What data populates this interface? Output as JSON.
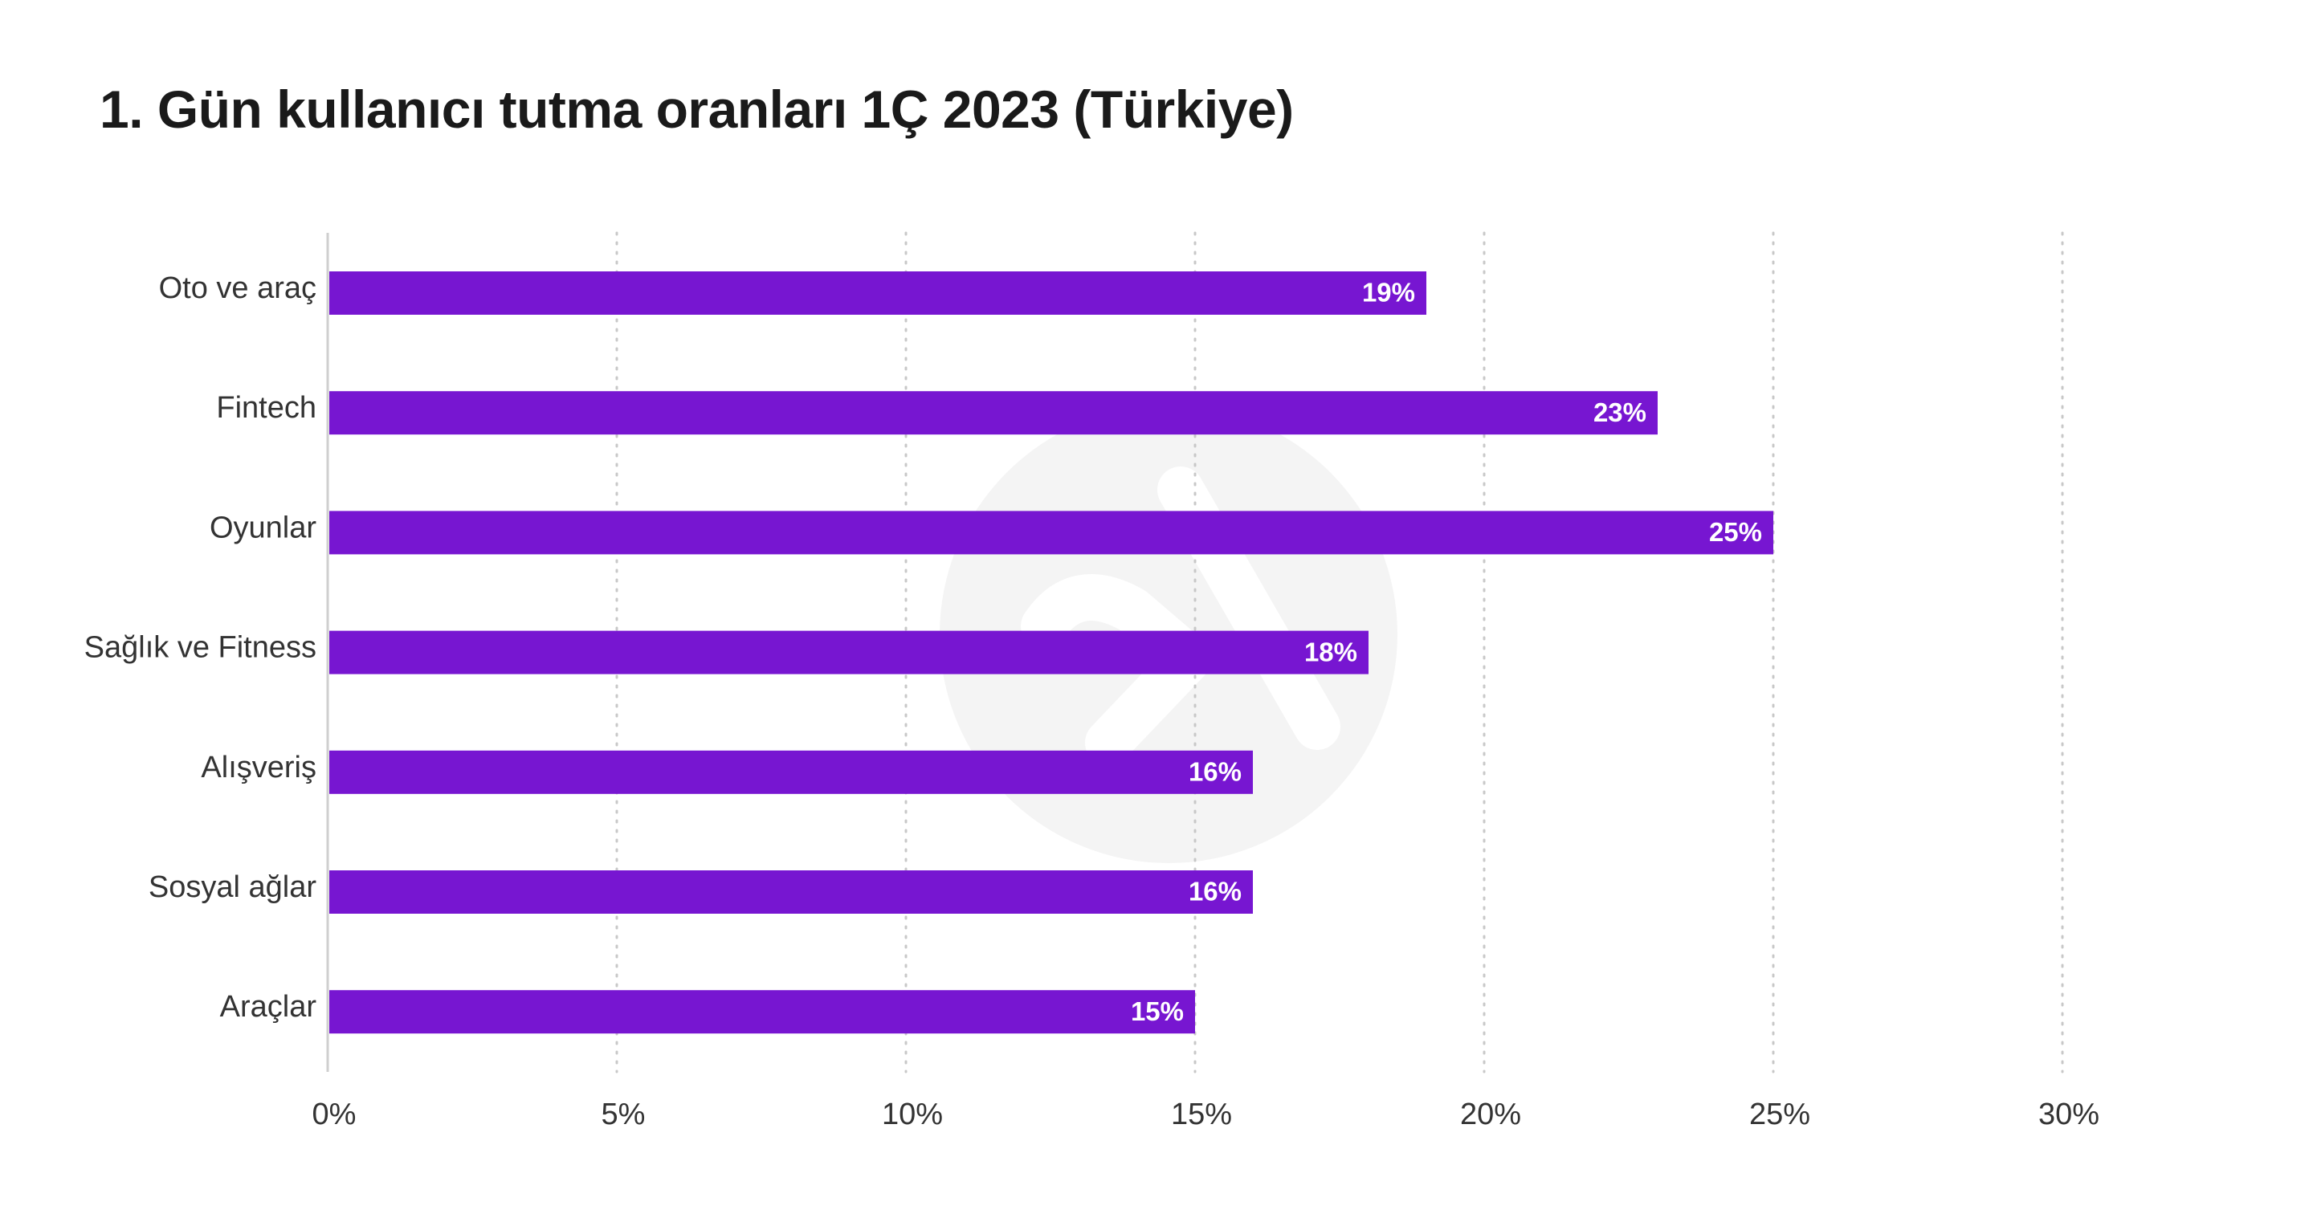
{
  "chart_data": {
    "type": "bar",
    "orientation": "horizontal",
    "title": "1. Gün kullanıcı tutma oranları 1Ç 2023 (Türkiye)",
    "categories": [
      "Oto ve araç",
      "Fintech",
      "Oyunlar",
      "Sağlık ve Fitness",
      "Alışveriş",
      "Sosyal ağlar",
      "Araçlar"
    ],
    "values": [
      19,
      23,
      25,
      18,
      16,
      16,
      15
    ],
    "data_labels": [
      "19%",
      "23%",
      "25%",
      "18%",
      "16%",
      "16%",
      "15%"
    ],
    "xlim": [
      0,
      30
    ],
    "xticks": [
      0,
      5,
      10,
      15,
      20,
      25,
      30
    ],
    "xtick_labels": [
      "0%",
      "5%",
      "10%",
      "15%",
      "20%",
      "25%",
      "30%"
    ],
    "xlabel": "",
    "ylabel": "",
    "grid": "vertical-dotted",
    "legend": "none"
  },
  "colors": {
    "bar": "#7716d1",
    "grid": "#c8c8c8",
    "axis": "#cfcfcf",
    "watermark": "#f4f4f4",
    "watermark_mark": "#ffffff"
  },
  "watermark": {
    "icon": "logo-watermark-icon"
  }
}
